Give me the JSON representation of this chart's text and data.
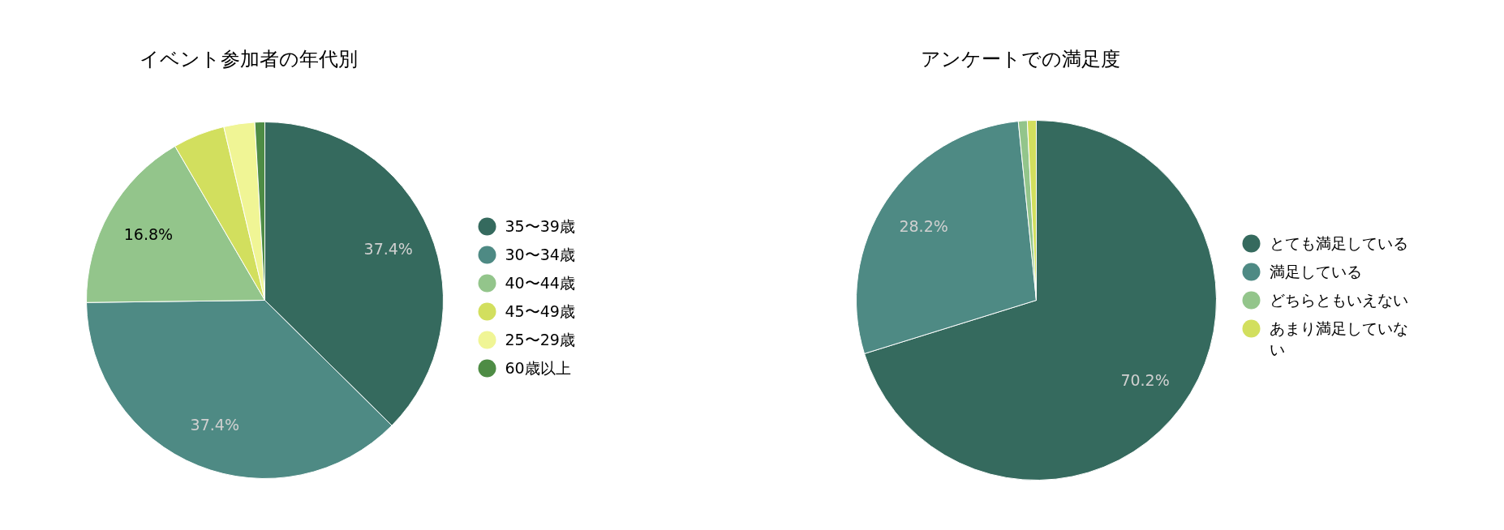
{
  "chart_data": [
    {
      "type": "pie",
      "title": "イベント参加者の年代別",
      "legend": "right",
      "categories": [
        "35〜39歳",
        "30〜34歳",
        "40〜44歳",
        "45〜49歳",
        "25〜29歳",
        "60歳以上"
      ],
      "values": [
        37.4,
        37.4,
        16.8,
        4.7,
        2.8,
        0.9
      ],
      "colors": [
        "#356a5e",
        "#4e8a84",
        "#93c58b",
        "#d2df5e",
        "#f0f595",
        "#4e8c45"
      ],
      "value_labels": [
        "37.4%",
        "37.4%",
        "16.8%",
        null,
        null,
        null
      ]
    },
    {
      "type": "pie",
      "title": "アンケートでの満足度",
      "legend": "right",
      "categories": [
        "とても満足している",
        "満足している",
        "どちらともいえない",
        "あまり満足していない"
      ],
      "values": [
        70.2,
        28.2,
        0.8,
        0.8
      ],
      "colors": [
        "#356a5e",
        "#4e8a84",
        "#93c58b",
        "#d2df5e"
      ],
      "value_labels": [
        "70.2%",
        "28.2%",
        null,
        null
      ]
    }
  ]
}
